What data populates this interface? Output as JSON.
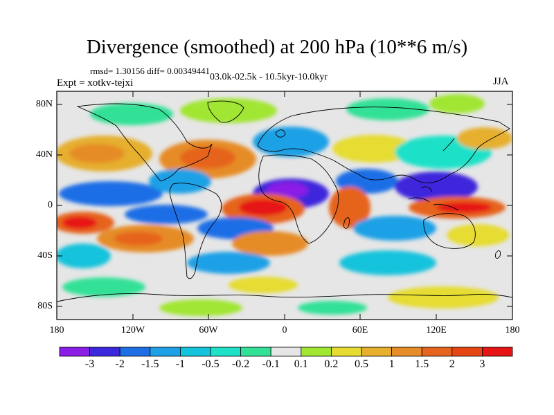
{
  "title": "Divergence (smoothed) at 200 hPa (10**6 m/s)",
  "stats": "rmsd= 1.30156 diff= 0.00349441",
  "experiment": "Expt = xotkv-tejxi",
  "period": "03.0k-02.5k - 10.5kyr-10.0kyr",
  "season": "JJA",
  "y_axis_labels": [
    "80N",
    "40N",
    "0",
    "40S",
    "80S"
  ],
  "x_axis_labels": [
    "180",
    "120W",
    "60W",
    "0",
    "60E",
    "120E",
    "180"
  ],
  "colorbar": {
    "labels": [
      "-3",
      "-2",
      "-1.5",
      "-1",
      "-0.5",
      "-0.2",
      "-0.1",
      "0.1",
      "0.2",
      "0.5",
      "1",
      "1.5",
      "2",
      "3"
    ],
    "colors": [
      "#8a1ee6",
      "#3c28dc",
      "#1e6ee6",
      "#1ea0e6",
      "#14c3dc",
      "#1ee1c8",
      "#32e196",
      "#e6e6e6",
      "#a0e632",
      "#e6dc32",
      "#e6af2d",
      "#e68c28",
      "#e6641e",
      "#e64614",
      "#e61414"
    ]
  },
  "map_colors": {
    "neutral": "#e6e6e6",
    "coastline": "#000000"
  }
}
